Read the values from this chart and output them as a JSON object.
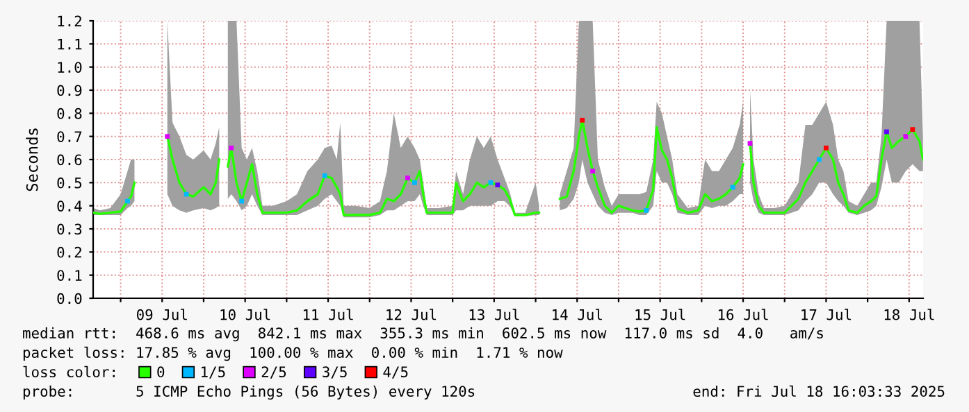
{
  "chart_data": {
    "type": "line",
    "ylabel": "Seconds",
    "legend_title": "loss color:",
    "legend": "bottom",
    "grid": true,
    "ylim": [
      0,
      1.2
    ],
    "yticks": [
      {
        "value": 0,
        "label": "0.0"
      },
      {
        "value": 0.1,
        "label": "0.1"
      },
      {
        "value": 0.2,
        "label": "0.2"
      },
      {
        "value": 0.3,
        "label": "0.3"
      },
      {
        "value": 0.4,
        "label": "0.4"
      },
      {
        "value": 0.5,
        "label": "0.5"
      },
      {
        "value": 0.6,
        "label": "0.6"
      },
      {
        "value": 0.7,
        "label": "0.7"
      },
      {
        "value": 0.8,
        "label": "0.8"
      },
      {
        "value": 0.9,
        "label": "0.9"
      },
      {
        "value": 1,
        "label": "1.0"
      },
      {
        "value": 1.1,
        "label": "1.1"
      },
      {
        "value": 1.2,
        "label": "1.2"
      }
    ],
    "xlim": [
      "2025-07-08T16:03",
      "2025-07-18T16:03"
    ],
    "xticks": [
      {
        "value": "2025-07-09T00:00",
        "label": null
      },
      {
        "value": "2025-07-09T12:00",
        "label": "09 Jul"
      },
      {
        "value": "2025-07-10T00:00",
        "label": null
      },
      {
        "value": "2025-07-10T12:00",
        "label": "10 Jul"
      },
      {
        "value": "2025-07-11T00:00",
        "label": null
      },
      {
        "value": "2025-07-11T12:00",
        "label": "11 Jul"
      },
      {
        "value": "2025-07-12T00:00",
        "label": null
      },
      {
        "value": "2025-07-12T12:00",
        "label": "12 Jul"
      },
      {
        "value": "2025-07-13T00:00",
        "label": null
      },
      {
        "value": "2025-07-13T12:00",
        "label": "13 Jul"
      },
      {
        "value": "2025-07-14T00:00",
        "label": null
      },
      {
        "value": "2025-07-14T12:00",
        "label": "14 Jul"
      },
      {
        "value": "2025-07-15T00:00",
        "label": null
      },
      {
        "value": "2025-07-15T12:00",
        "label": "15 Jul"
      },
      {
        "value": "2025-07-16T00:00",
        "label": null
      },
      {
        "value": "2025-07-16T12:00",
        "label": "16 Jul"
      },
      {
        "value": "2025-07-17T00:00",
        "label": null
      },
      {
        "value": "2025-07-17T12:00",
        "label": "17 Jul"
      },
      {
        "value": "2025-07-18T00:00",
        "label": null
      },
      {
        "value": "2025-07-18T12:00",
        "label": "18 Jul"
      }
    ],
    "series": [
      {
        "name": "0",
        "color": "#26ff00",
        "x": [
          "2025-07-08T16:12",
          "2025-07-08T18:00",
          "2025-07-08T21:00",
          "2025-07-09T00:00",
          "2025-07-09T02:00",
          "2025-07-09T03:00",
          "2025-07-09T04:00",
          "2025-07-09T08:00",
          "2025-07-09T13:30",
          "2025-07-09T15:00",
          "2025-07-09T17:00",
          "2025-07-09T19:00",
          "2025-07-09T21:00",
          "2025-07-10T00:00",
          "2025-07-10T02:00",
          "2025-07-10T03:30",
          "2025-07-10T04:30",
          "2025-07-10T05:30",
          "2025-07-10T07:00",
          "2025-07-10T08:00",
          "2025-07-10T09:30",
          "2025-07-10T11:00",
          "2025-07-10T12:30",
          "2025-07-10T14:00",
          "2025-07-10T15:30",
          "2025-07-10T17:00",
          "2025-07-10T20:00",
          "2025-07-11T00:00",
          "2025-07-11T03:00",
          "2025-07-11T06:00",
          "2025-07-11T09:00",
          "2025-07-11T11:00",
          "2025-07-11T13:00",
          "2025-07-11T14:30",
          "2025-07-11T15:30",
          "2025-07-11T16:30",
          "2025-07-11T20:00",
          "2025-07-12T00:00",
          "2025-07-12T03:00",
          "2025-07-12T05:00",
          "2025-07-12T07:00",
          "2025-07-12T09:00",
          "2025-07-12T11:00",
          "2025-07-12T13:00",
          "2025-07-12T14:30",
          "2025-07-12T15:30",
          "2025-07-12T16:30",
          "2025-07-12T20:00",
          "2025-07-13T00:00",
          "2025-07-13T01:00",
          "2025-07-13T03:00",
          "2025-07-13T05:00",
          "2025-07-13T07:00",
          "2025-07-13T09:00",
          "2025-07-13T11:00",
          "2025-07-13T13:00",
          "2025-07-13T15:00",
          "2025-07-13T16:30",
          "2025-07-13T18:00",
          "2025-07-13T21:00",
          "2025-07-14T00:00",
          "2025-07-14T01:00",
          "2025-07-14T04:00",
          "2025-07-14T07:00",
          "2025-07-14T09:00",
          "2025-07-14T11:00",
          "2025-07-14T12:30",
          "2025-07-14T13:30",
          "2025-07-14T15:00",
          "2025-07-14T16:30",
          "2025-07-14T18:00",
          "2025-07-14T20:00",
          "2025-07-14T22:00",
          "2025-07-15T00:00",
          "2025-07-15T02:00",
          "2025-07-15T04:00",
          "2025-07-15T06:00",
          "2025-07-15T08:00",
          "2025-07-15T10:00",
          "2025-07-15T11:00",
          "2025-07-15T12:30",
          "2025-07-15T14:00",
          "2025-07-15T15:30",
          "2025-07-15T17:00",
          "2025-07-15T20:00",
          "2025-07-15T23:00",
          "2025-07-16T01:00",
          "2025-07-16T03:00",
          "2025-07-16T05:00",
          "2025-07-16T07:00",
          "2025-07-16T09:00",
          "2025-07-16T11:00",
          "2025-07-16T12:00",
          "2025-07-16T13:00",
          "2025-07-16T14:00",
          "2025-07-16T15:00",
          "2025-07-16T16:30",
          "2025-07-16T18:00",
          "2025-07-16T21:00",
          "2025-07-17T00:00",
          "2025-07-17T02:00",
          "2025-07-17T04:00",
          "2025-07-17T06:00",
          "2025-07-17T08:00",
          "2025-07-17T10:00",
          "2025-07-17T12:00",
          "2025-07-17T14:00",
          "2025-07-17T15:30",
          "2025-07-17T17:00",
          "2025-07-17T18:30",
          "2025-07-17T21:00",
          "2025-07-17T23:00",
          "2025-07-18T01:00",
          "2025-07-18T02:30",
          "2025-07-18T04:00",
          "2025-07-18T05:30",
          "2025-07-18T07:00",
          "2025-07-18T09:00",
          "2025-07-18T11:00",
          "2025-07-18T13:00",
          "2025-07-18T15:00",
          "2025-07-18T16:00"
        ],
        "values": [
          0.37,
          0.365,
          0.37,
          0.375,
          0.42,
          0.44,
          0.5,
          null,
          0.7,
          0.6,
          0.5,
          0.45,
          0.44,
          0.48,
          0.45,
          0.5,
          0.6,
          null,
          0.57,
          0.65,
          0.5,
          0.42,
          0.5,
          0.58,
          0.45,
          0.37,
          0.37,
          0.37,
          0.38,
          0.42,
          0.45,
          0.53,
          0.52,
          0.48,
          0.45,
          0.36,
          0.36,
          0.36,
          0.37,
          0.43,
          0.42,
          0.45,
          0.52,
          0.5,
          0.55,
          0.45,
          0.37,
          0.37,
          0.37,
          0.5,
          0.42,
          0.45,
          0.5,
          0.48,
          0.5,
          0.49,
          0.47,
          0.43,
          0.36,
          0.36,
          0.37,
          0.37,
          null,
          0.43,
          0.44,
          0.55,
          0.7,
          0.77,
          0.65,
          0.55,
          0.48,
          0.4,
          0.37,
          0.4,
          0.39,
          0.38,
          0.375,
          0.38,
          0.47,
          0.74,
          0.64,
          0.6,
          0.52,
          0.39,
          0.37,
          0.38,
          0.45,
          0.42,
          0.43,
          0.45,
          0.48,
          0.52,
          0.58,
          null,
          0.67,
          0.5,
          0.4,
          0.37,
          0.37,
          0.37,
          0.4,
          0.43,
          0.5,
          0.55,
          0.6,
          0.65,
          0.6,
          0.5,
          0.45,
          0.38,
          0.37,
          0.4,
          0.42,
          0.44,
          0.6,
          0.72,
          0.65,
          0.68,
          0.7,
          0.73,
          0.68,
          0.6
        ],
        "lower": [
          0.36,
          0.36,
          0.36,
          0.36,
          0.39,
          0.4,
          0.42,
          null,
          0.45,
          0.4,
          0.38,
          0.37,
          0.38,
          0.39,
          0.38,
          0.39,
          0.4,
          null,
          0.43,
          0.45,
          0.42,
          0.38,
          0.4,
          0.45,
          0.4,
          0.36,
          0.36,
          0.36,
          0.36,
          0.38,
          0.4,
          0.43,
          0.45,
          0.42,
          0.4,
          0.35,
          0.35,
          0.35,
          0.36,
          0.38,
          0.38,
          0.4,
          0.42,
          0.42,
          0.45,
          0.4,
          0.36,
          0.36,
          0.36,
          0.38,
          0.38,
          0.4,
          0.4,
          0.4,
          0.4,
          0.42,
          0.42,
          0.4,
          0.355,
          0.355,
          0.36,
          0.36,
          null,
          0.38,
          0.39,
          0.43,
          0.5,
          0.6,
          0.5,
          0.45,
          0.4,
          0.37,
          0.36,
          0.37,
          0.37,
          0.37,
          0.36,
          0.36,
          0.4,
          0.55,
          0.5,
          0.5,
          0.45,
          0.37,
          0.36,
          0.36,
          0.4,
          0.39,
          0.4,
          0.4,
          0.42,
          0.45,
          0.45,
          null,
          0.5,
          0.42,
          0.37,
          0.36,
          0.36,
          0.36,
          0.37,
          0.38,
          0.42,
          0.45,
          0.5,
          0.5,
          0.45,
          0.42,
          0.4,
          0.37,
          0.36,
          0.37,
          0.38,
          0.4,
          0.48,
          0.6,
          0.5,
          0.5,
          0.55,
          0.58,
          0.55,
          0.55
        ],
        "upper": [
          0.39,
          0.38,
          0.39,
          0.45,
          0.55,
          0.6,
          0.6,
          null,
          1.2,
          0.76,
          0.7,
          0.62,
          0.6,
          0.64,
          0.6,
          0.67,
          0.74,
          null,
          1.2,
          1.2,
          1.2,
          0.65,
          0.6,
          0.65,
          0.55,
          0.4,
          0.4,
          0.42,
          0.45,
          0.55,
          0.6,
          0.65,
          0.66,
          0.6,
          0.76,
          0.4,
          0.4,
          0.39,
          0.42,
          0.55,
          0.8,
          0.65,
          0.7,
          0.65,
          0.6,
          0.5,
          0.39,
          0.39,
          0.4,
          0.55,
          0.45,
          0.6,
          0.7,
          0.65,
          0.7,
          0.6,
          0.52,
          0.46,
          0.37,
          0.37,
          0.5,
          0.4,
          null,
          0.45,
          0.55,
          0.65,
          1.2,
          1.2,
          1.2,
          1.2,
          0.6,
          0.48,
          0.4,
          0.45,
          0.45,
          0.45,
          0.45,
          0.46,
          0.6,
          0.85,
          0.8,
          0.7,
          0.6,
          0.45,
          0.39,
          0.4,
          0.6,
          0.55,
          0.55,
          0.6,
          0.65,
          0.75,
          0.85,
          null,
          0.9,
          0.6,
          0.45,
          0.39,
          0.39,
          0.4,
          0.45,
          0.5,
          0.75,
          0.75,
          0.8,
          0.85,
          0.75,
          0.6,
          0.55,
          0.42,
          0.4,
          0.45,
          0.5,
          0.5,
          0.7,
          1.2,
          1.2,
          1.2,
          1.2,
          1.2,
          1.2,
          0.7
        ]
      },
      {
        "name": "1/5",
        "type": "scatter",
        "color": "#00b8ff",
        "x": [
          "2025-07-09T02:00",
          "2025-07-09T19:00",
          "2025-07-10T11:00",
          "2025-07-11T11:00",
          "2025-07-12T13:00",
          "2025-07-13T11:00",
          "2025-07-15T08:00",
          "2025-07-16T09:00",
          "2025-07-17T10:00"
        ],
        "values": [
          0.42,
          0.45,
          0.42,
          0.53,
          0.5,
          0.5,
          0.38,
          0.48,
          0.6
        ]
      },
      {
        "name": "2/5",
        "type": "scatter",
        "color": "#dd00ff",
        "x": [
          "2025-07-09T13:30",
          "2025-07-10T08:00",
          "2025-07-12T11:00",
          "2025-07-14T16:30",
          "2025-07-16T14:00",
          "2025-07-18T11:00"
        ],
        "values": [
          0.7,
          0.65,
          0.52,
          0.55,
          0.67,
          0.7
        ]
      },
      {
        "name": "3/5",
        "type": "scatter",
        "color": "#5e00ff",
        "x": [
          "2025-07-13T13:00",
          "2025-07-18T05:30"
        ],
        "values": [
          0.49,
          0.72
        ]
      },
      {
        "name": "4/5",
        "type": "scatter",
        "color": "#ff0000",
        "x": [
          "2025-07-14T13:30",
          "2025-07-17T12:00",
          "2025-07-18T13:00"
        ],
        "values": [
          0.77,
          0.65,
          0.73
        ]
      }
    ],
    "annotations": [
      "median rtt:  468.6 ms avg  842.1 ms max  355.3 ms min  602.5 ms now  117.0 ms sd  4.0   am/s",
      "packet loss: 17.85 % avg  100.00 % max  0.00 % min  1.71 % now",
      "probe:       5 ICMP Echo Pings (56 Bytes) every 120s",
      "end: Fri Jul 18 16:03:33 2025"
    ]
  }
}
